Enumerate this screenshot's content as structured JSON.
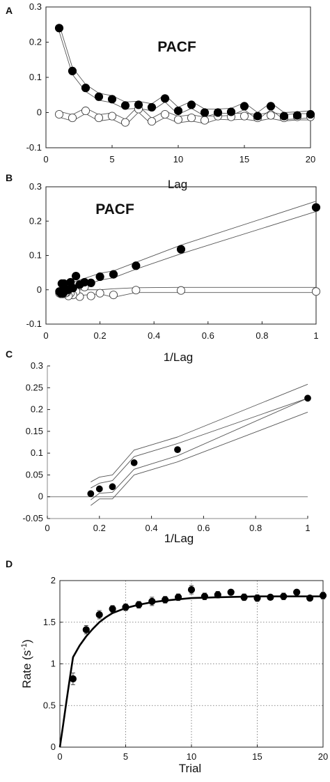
{
  "chart_data": [
    {
      "panel": "A",
      "type": "line",
      "title": "PACF",
      "xlabel": "Lag",
      "ylabel": "",
      "xlim": [
        0,
        20
      ],
      "ylim": [
        -0.1,
        0.3
      ],
      "xticks": [
        0,
        5,
        10,
        15,
        20
      ],
      "yticks": [
        -0.1,
        0,
        0.1,
        0.2,
        0.3
      ],
      "grid": false,
      "series": [
        {
          "marker": "filled-circle",
          "x": [
            1,
            2,
            3,
            4,
            5,
            6,
            7,
            8,
            9,
            10,
            11,
            12,
            13,
            14,
            15,
            16,
            17,
            18,
            19,
            20
          ],
          "y": [
            0.24,
            0.118,
            0.07,
            0.045,
            0.038,
            0.02,
            0.022,
            0.015,
            0.04,
            0.005,
            0.022,
            0.0,
            0.0,
            0.002,
            0.018,
            -0.01,
            0.018,
            -0.01,
            -0.008,
            -0.005
          ]
        },
        {
          "marker": "open-circle",
          "x": [
            1,
            2,
            3,
            4,
            5,
            6,
            7,
            8,
            9,
            10,
            11,
            12,
            13,
            14,
            15,
            16,
            17,
            18,
            19,
            20
          ],
          "y": [
            -0.005,
            -0.015,
            0.005,
            -0.015,
            -0.01,
            -0.028,
            0.01,
            -0.025,
            -0.005,
            -0.02,
            -0.015,
            -0.022,
            -0.01,
            -0.012,
            -0.01,
            -0.015,
            -0.008,
            -0.015,
            -0.012,
            -0.012
          ]
        }
      ],
      "bands": [
        {
          "x": [
            1,
            2,
            3,
            4,
            5,
            6,
            7,
            8,
            9,
            10,
            11,
            12,
            13,
            14,
            15,
            16,
            17,
            18,
            19,
            20
          ],
          "upper": [
            0.25,
            0.128,
            0.08,
            0.055,
            0.048,
            0.03,
            0.032,
            0.025,
            0.05,
            0.015,
            0.032,
            0.01,
            0.01,
            0.012,
            0.028,
            0.0,
            0.028,
            0.0,
            0.002,
            0.005
          ],
          "lower": [
            0.23,
            0.108,
            0.06,
            0.035,
            0.028,
            0.01,
            0.012,
            0.005,
            0.03,
            -0.005,
            0.012,
            -0.01,
            -0.01,
            -0.008,
            0.008,
            -0.02,
            0.008,
            -0.02,
            -0.018,
            -0.015
          ]
        },
        {
          "x": [
            1,
            2,
            3,
            4,
            5,
            6,
            7,
            8,
            9,
            10,
            11,
            12,
            13,
            14,
            15,
            16,
            17,
            18,
            19,
            20
          ],
          "upper": [
            0.003,
            -0.006,
            0.013,
            -0.006,
            -0.001,
            -0.019,
            0.019,
            -0.016,
            0.004,
            -0.011,
            -0.006,
            -0.013,
            -0.001,
            -0.003,
            -0.001,
            -0.006,
            0.001,
            -0.006,
            -0.003,
            -0.003
          ],
          "lower": [
            -0.013,
            -0.024,
            -0.003,
            -0.024,
            -0.019,
            -0.037,
            0.001,
            -0.034,
            -0.014,
            -0.029,
            -0.024,
            -0.031,
            -0.019,
            -0.021,
            -0.019,
            -0.024,
            -0.017,
            -0.024,
            -0.021,
            -0.021
          ]
        }
      ]
    },
    {
      "panel": "B",
      "type": "line",
      "title": "PACF",
      "xlabel": "1/Lag",
      "ylabel": "",
      "xlim": [
        0,
        1
      ],
      "ylim": [
        -0.1,
        0.3
      ],
      "xticks": [
        0,
        0.2,
        0.4,
        0.6,
        0.8,
        1
      ],
      "yticks": [
        -0.1,
        0,
        0.1,
        0.2,
        0.3
      ],
      "grid": false,
      "series": [
        {
          "marker": "filled-circle",
          "x": [
            1,
            0.5,
            0.3333,
            0.25,
            0.2,
            0.1667,
            0.1429,
            0.125,
            0.1111,
            0.1,
            0.0909,
            0.0833,
            0.0769,
            0.0714,
            0.0667,
            0.0625,
            0.0588,
            0.0556,
            0.0526,
            0.05
          ],
          "y": [
            0.24,
            0.118,
            0.07,
            0.045,
            0.038,
            0.02,
            0.022,
            0.015,
            0.04,
            0.005,
            0.022,
            0.0,
            0.0,
            0.002,
            0.018,
            -0.01,
            0.018,
            -0.01,
            -0.008,
            -0.005
          ]
        },
        {
          "marker": "open-circle",
          "x": [
            1,
            0.5,
            0.3333,
            0.25,
            0.2,
            0.1667,
            0.1429,
            0.125,
            0.1111,
            0.1,
            0.0909,
            0.0833,
            0.0769,
            0.0714,
            0.0667,
            0.0625,
            0.0588,
            0.0556,
            0.0526,
            0.05
          ],
          "y": [
            -0.005,
            -0.002,
            -0.001,
            -0.015,
            -0.01,
            -0.018,
            0.008,
            -0.02,
            -0.005,
            -0.015,
            -0.01,
            -0.018,
            -0.008,
            -0.01,
            -0.008,
            -0.012,
            -0.006,
            -0.012,
            -0.01,
            -0.01
          ]
        }
      ],
      "bands": [
        {
          "x": [
            0.05,
            0.1,
            0.2,
            0.25,
            0.3333,
            0.5,
            1
          ],
          "upper": [
            0.01,
            0.022,
            0.048,
            0.055,
            0.08,
            0.13,
            0.258
          ],
          "lower": [
            -0.02,
            0.0,
            0.028,
            0.035,
            0.06,
            0.105,
            0.228
          ]
        },
        {
          "x": [
            0.05,
            0.1,
            0.2,
            0.25,
            0.3333,
            0.5,
            1
          ],
          "upper": [
            0.004,
            0.0,
            0.0,
            0.003,
            0.006,
            0.007,
            0.007
          ],
          "lower": [
            -0.02,
            -0.018,
            -0.012,
            -0.022,
            -0.008,
            -0.008,
            -0.008
          ]
        }
      ]
    },
    {
      "panel": "C",
      "type": "line",
      "title": "",
      "xlabel": "1/Lag",
      "ylabel": "",
      "xlim": [
        0,
        1
      ],
      "ylim": [
        -0.05,
        0.3
      ],
      "xticks": [
        0,
        0.2,
        0.4,
        0.6,
        0.8,
        1
      ],
      "yticks": [
        -0.05,
        0,
        0.05,
        0.1,
        0.15,
        0.2,
        0.25,
        0.3
      ],
      "grid": false,
      "series": [
        {
          "marker": "filled-circle",
          "x": [
            0.1667,
            0.2,
            0.25,
            0.3333,
            0.5,
            1
          ],
          "y": [
            0.007,
            0.018,
            0.023,
            0.078,
            0.108,
            0.226
          ]
        }
      ],
      "bands": [
        {
          "x": [
            0.1667,
            0.2,
            0.25,
            0.3333,
            0.5,
            1
          ],
          "upper": [
            0.034,
            0.045,
            0.05,
            0.107,
            0.137,
            0.258
          ],
          "lower": [
            -0.02,
            -0.005,
            -0.005,
            0.05,
            0.08,
            0.194
          ]
        },
        {
          "x": [
            0.1667,
            0.2,
            0.25,
            0.3333,
            0.5,
            1
          ],
          "upper": [
            0.02,
            0.031,
            0.037,
            0.092,
            0.122,
            0.226
          ],
          "lower": [
            -0.007,
            0.008,
            0.01,
            0.063,
            0.094,
            0.226
          ]
        }
      ],
      "zero_line": true
    },
    {
      "panel": "D",
      "type": "scatter",
      "title": "",
      "xlabel": "Trial",
      "ylabel": "Rate (s",
      "ylabel_sup": "-1",
      "ylabel_end": ")",
      "xlim": [
        0,
        20
      ],
      "ylim": [
        0,
        2
      ],
      "xticks": [
        0,
        5,
        10,
        15,
        20
      ],
      "yticks": [
        0,
        0.5,
        1,
        1.5,
        2
      ],
      "grid": true,
      "series": [
        {
          "marker": "filled-circle",
          "x": [
            1,
            2,
            3,
            4,
            5,
            6,
            7,
            8,
            9,
            10,
            11,
            12,
            13,
            14,
            15,
            16,
            17,
            18,
            19,
            20
          ],
          "y": [
            0.82,
            1.41,
            1.59,
            1.66,
            1.68,
            1.71,
            1.75,
            1.77,
            1.8,
            1.89,
            1.81,
            1.83,
            1.86,
            1.8,
            1.79,
            1.8,
            1.81,
            1.86,
            1.79,
            1.82
          ],
          "err": [
            0.07,
            0.05,
            0.05,
            0.04,
            0.04,
            0.04,
            0.05,
            0.04,
            0.04,
            0.05,
            0.04,
            0.04,
            0.03,
            0.04,
            0.04,
            0.03,
            0.04,
            0.03,
            0.03,
            0.04
          ]
        }
      ],
      "fit": {
        "x": [
          0,
          0.25,
          0.5,
          0.75,
          1,
          1.5,
          2,
          2.5,
          3,
          3.5,
          4,
          5,
          6,
          7,
          8,
          10,
          12,
          15,
          20
        ],
        "y": [
          0.0,
          0.27,
          0.55,
          0.82,
          1.08,
          1.22,
          1.33,
          1.42,
          1.5,
          1.56,
          1.61,
          1.67,
          1.71,
          1.74,
          1.76,
          1.79,
          1.8,
          1.81,
          1.81
        ]
      }
    }
  ],
  "panel_letters": [
    "A",
    "B",
    "C",
    "D"
  ]
}
